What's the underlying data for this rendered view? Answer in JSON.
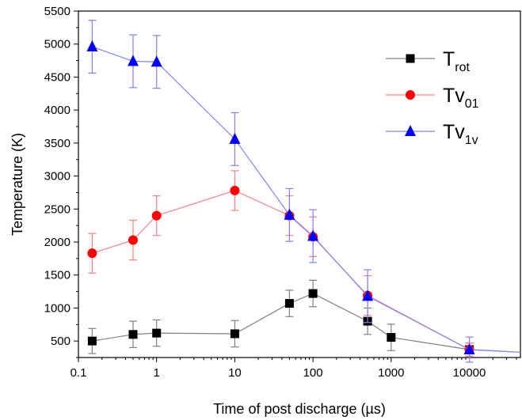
{
  "chart_data": {
    "type": "line",
    "xlabel": "Time of post discharge (µs)",
    "ylabel": "Temperature (K)",
    "xscale": "log",
    "xlim": [
      0.1,
      45000
    ],
    "ylim": [
      250,
      5500
    ],
    "x_ticks": [
      {
        "value": 0.1,
        "label": "0.1"
      },
      {
        "value": 1,
        "label": "1"
      },
      {
        "value": 10,
        "label": "10"
      },
      {
        "value": 100,
        "label": "100"
      },
      {
        "value": 1000,
        "label": "1000"
      },
      {
        "value": 10000,
        "label": "10000"
      }
    ],
    "y_ticks": [
      500,
      1000,
      1500,
      2000,
      2500,
      3000,
      3500,
      4000,
      4500,
      5000,
      5500
    ],
    "grid": false,
    "legend_position": "top-right",
    "series": [
      {
        "name_main": "T",
        "name_sub": "rot",
        "color": "#808080",
        "marker": "square",
        "marker_color": "#000000",
        "points": [
          {
            "x": 0.15,
            "y": 500,
            "err": 190
          },
          {
            "x": 0.5,
            "y": 600,
            "err": 200
          },
          {
            "x": 1,
            "y": 620,
            "err": 200
          },
          {
            "x": 10,
            "y": 610,
            "err": 200
          },
          {
            "x": 50,
            "y": 1070,
            "err": 200
          },
          {
            "x": 100,
            "y": 1220,
            "err": 200
          },
          {
            "x": 500,
            "y": 800,
            "err": 200
          },
          {
            "x": 1000,
            "y": 555,
            "err": 200
          },
          {
            "x": 10000,
            "y": 370,
            "err": 100
          }
        ],
        "tail": {
          "x": 45000,
          "y": 330
        }
      },
      {
        "name_main": "Tv",
        "name_sub": "01",
        "color": "#ff8080",
        "marker": "circle",
        "marker_color": "#ff0000",
        "points": [
          {
            "x": 0.15,
            "y": 1830,
            "err": 300
          },
          {
            "x": 0.5,
            "y": 2030,
            "err": 300
          },
          {
            "x": 1,
            "y": 2400,
            "err": 300
          },
          {
            "x": 10,
            "y": 2780,
            "err": 300
          },
          {
            "x": 50,
            "y": 2400,
            "err": 300
          },
          {
            "x": 100,
            "y": 2080,
            "err": 300
          },
          {
            "x": 500,
            "y": 1190,
            "err": 300
          },
          {
            "x": 10000,
            "y": 370,
            "err": 100
          }
        ]
      },
      {
        "name_main": "Tv",
        "name_sub": "1v",
        "color": "#8080ff",
        "marker": "triangle",
        "marker_color": "#0000ff",
        "points": [
          {
            "x": 0.15,
            "y": 4960,
            "err": 400
          },
          {
            "x": 0.5,
            "y": 4740,
            "err": 400
          },
          {
            "x": 1,
            "y": 4730,
            "err": 400
          },
          {
            "x": 10,
            "y": 3560,
            "err": 400
          },
          {
            "x": 50,
            "y": 2410,
            "err": 400
          },
          {
            "x": 100,
            "y": 2090,
            "err": 400
          },
          {
            "x": 500,
            "y": 1180,
            "err": 400
          },
          {
            "x": 10000,
            "y": 370,
            "err": 190
          }
        ],
        "tail": {
          "x": 45000,
          "y": 330
        }
      }
    ]
  }
}
